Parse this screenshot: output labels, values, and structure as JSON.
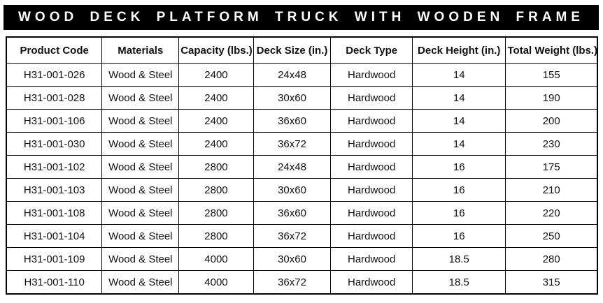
{
  "banner": {
    "title": "WOOD DECK PLATFORM TRUCK WITH WOODEN FRAME"
  },
  "table": {
    "columns": [
      "Product Code",
      "Materials",
      "Capacity (lbs.)",
      "Deck Size (in.)",
      "Deck Type",
      "Deck Height (in.)",
      "Total Weight (lbs.)"
    ],
    "rows": [
      [
        "H31-001-026",
        "Wood & Steel",
        "2400",
        "24x48",
        "Hardwood",
        "14",
        "155"
      ],
      [
        "H31-001-028",
        "Wood & Steel",
        "2400",
        "30x60",
        "Hardwood",
        "14",
        "190"
      ],
      [
        "H31-001-106",
        "Wood & Steel",
        "2400",
        "36x60",
        "Hardwood",
        "14",
        "200"
      ],
      [
        "H31-001-030",
        "Wood & Steel",
        "2400",
        "36x72",
        "Hardwood",
        "14",
        "230"
      ],
      [
        "H31-001-102",
        "Wood & Steel",
        "2800",
        "24x48",
        "Hardwood",
        "16",
        "175"
      ],
      [
        "H31-001-103",
        "Wood & Steel",
        "2800",
        "30x60",
        "Hardwood",
        "16",
        "210"
      ],
      [
        "H31-001-108",
        "Wood & Steel",
        "2800",
        "36x60",
        "Hardwood",
        "16",
        "220"
      ],
      [
        "H31-001-104",
        "Wood & Steel",
        "2800",
        "36x72",
        "Hardwood",
        "16",
        "250"
      ],
      [
        "H31-001-109",
        "Wood & Steel",
        "4000",
        "30x60",
        "Hardwood",
        "18.5",
        "280"
      ],
      [
        "H31-001-110",
        "Wood & Steel",
        "4000",
        "36x72",
        "Hardwood",
        "18.5",
        "315"
      ]
    ]
  },
  "colors": {
    "banner_bg": "#000000",
    "banner_text": "#ffffff",
    "border": "#000000",
    "cell_text": "#111111",
    "page_bg": "#ffffff"
  }
}
